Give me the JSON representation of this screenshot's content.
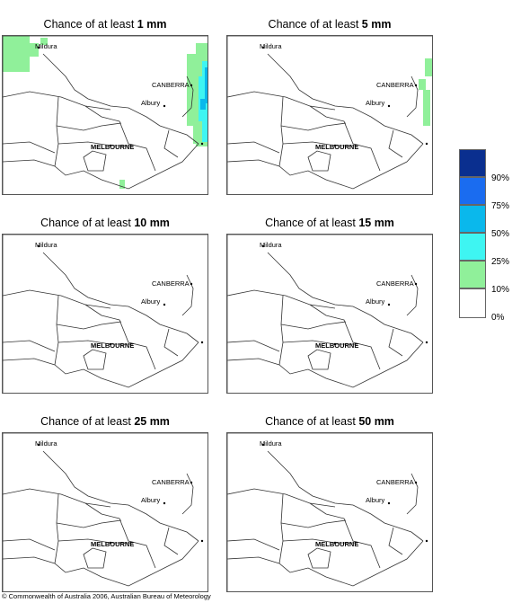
{
  "panels": [
    {
      "id": "p1",
      "title_prefix": "Chance of at least ",
      "title_value": "1 mm"
    },
    {
      "id": "p2",
      "title_prefix": "Chance of at least ",
      "title_value": "5 mm"
    },
    {
      "id": "p3",
      "title_prefix": "Chance of at least ",
      "title_value": "10 mm"
    },
    {
      "id": "p4",
      "title_prefix": "Chance of at least ",
      "title_value": "15 mm"
    },
    {
      "id": "p5",
      "title_prefix": "Chance of at least ",
      "title_value": "25 mm"
    },
    {
      "id": "p6",
      "title_prefix": "Chance of at least ",
      "title_value": "50 mm"
    }
  ],
  "places": {
    "mildura": "Mildura",
    "canberra": "CANBERRA",
    "albury": "Albury",
    "melbourne": "MELBOURNE"
  },
  "legend": {
    "swatches": [
      "#0a2f8f",
      "#1a6cf0",
      "#0ab8ec",
      "#3ef5f2",
      "#90f09a",
      "#ffffff"
    ],
    "labels": [
      "90%",
      "75%",
      "50%",
      "25%",
      "10%",
      "0%"
    ]
  },
  "colors": {
    "green_10": "#90f09a",
    "cyan_25": "#3ef5f2",
    "lightblue_50": "#0ab8ec"
  },
  "copyright": "© Commonwealth of Australia 2006, Australian Bureau of Meteorology"
}
